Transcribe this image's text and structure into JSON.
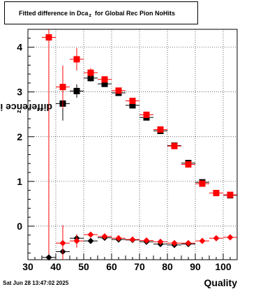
{
  "title": {
    "before": "Fitted difference in Dca",
    "sub": "z",
    "after": "for Global Rec Pion NoHits"
  },
  "axes": {
    "ylabel_main": "difference in Dca",
    "ylabel_sub": "z",
    "xlabel": "Quality"
  },
  "timestamp": "Sat Jun 28 13:47:02 2025",
  "colors": {
    "black": "#000000",
    "red": "#ff0000",
    "grid": "#000000"
  },
  "chart_data": {
    "type": "scatter",
    "xlim": [
      30,
      105
    ],
    "ylim": [
      -0.75,
      4.4
    ],
    "x_ticks": [
      30,
      40,
      50,
      60,
      70,
      80,
      90,
      100
    ],
    "x_tick_labels": [
      "30",
      "40",
      "50",
      "60",
      "70",
      "80",
      "90",
      "100"
    ],
    "y_ticks": [
      0,
      1,
      2,
      3,
      4
    ],
    "y_tick_labels": [
      "0",
      "1",
      "2",
      "3",
      "4"
    ],
    "grid": true,
    "series": [
      {
        "marker": "square",
        "color": "#000000",
        "points": [
          {
            "x": 42.5,
            "y": 2.74,
            "yerr": 0.38
          },
          {
            "x": 47.5,
            "y": 3.02,
            "yerr": 0.15
          },
          {
            "x": 52.5,
            "y": 3.31,
            "yerr": 0.08
          },
          {
            "x": 57.5,
            "y": 3.18,
            "yerr": 0.06
          },
          {
            "x": 62.5,
            "y": 2.98,
            "yerr": 0.05
          },
          {
            "x": 67.5,
            "y": 2.7,
            "yerr": 0.05
          },
          {
            "x": 72.5,
            "y": 2.43,
            "yerr": 0.05
          },
          {
            "x": 77.5,
            "y": 2.13,
            "yerr": 0.05
          },
          {
            "x": 82.5,
            "y": 1.8,
            "yerr": 0.05
          },
          {
            "x": 87.5,
            "y": 1.41,
            "yerr": 0.04
          },
          {
            "x": 92.5,
            "y": 0.98,
            "yerr": 0.04
          },
          {
            "x": 97.5,
            "y": 0.74,
            "yerr": 0.03
          },
          {
            "x": 102.5,
            "y": 0.69,
            "yerr": 0.03
          }
        ]
      },
      {
        "marker": "square",
        "color": "#ff0000",
        "points": [
          {
            "x": 37.5,
            "y": 4.22,
            "yerr": 4.95
          },
          {
            "x": 42.5,
            "y": 3.11,
            "yerr": 0.48
          },
          {
            "x": 47.5,
            "y": 3.73,
            "yerr": 0.25
          },
          {
            "x": 52.5,
            "y": 3.43,
            "yerr": 0.1
          },
          {
            "x": 57.5,
            "y": 3.28,
            "yerr": 0.07
          },
          {
            "x": 62.5,
            "y": 3.03,
            "yerr": 0.06
          },
          {
            "x": 67.5,
            "y": 2.8,
            "yerr": 0.06
          },
          {
            "x": 72.5,
            "y": 2.49,
            "yerr": 0.05
          },
          {
            "x": 77.5,
            "y": 2.16,
            "yerr": 0.05
          },
          {
            "x": 82.5,
            "y": 1.79,
            "yerr": 0.05
          },
          {
            "x": 87.5,
            "y": 1.38,
            "yerr": 0.05
          },
          {
            "x": 92.5,
            "y": 0.95,
            "yerr": 0.04
          },
          {
            "x": 97.5,
            "y": 0.74,
            "yerr": 0.03
          },
          {
            "x": 102.5,
            "y": 0.7,
            "yerr": 0.03
          }
        ]
      },
      {
        "marker": "diamond",
        "color": "#000000",
        "points": [
          {
            "x": 37.5,
            "y": -0.7,
            "yerr": 0.02
          },
          {
            "x": 42.5,
            "y": -0.57,
            "yerr": 0.1
          },
          {
            "x": 47.5,
            "y": -0.27,
            "yerr": 0.07
          },
          {
            "x": 52.5,
            "y": -0.33,
            "yerr": 0.04
          },
          {
            "x": 57.5,
            "y": -0.26,
            "yerr": 0.03
          },
          {
            "x": 62.5,
            "y": -0.3,
            "yerr": 0.03
          },
          {
            "x": 67.5,
            "y": -0.31,
            "yerr": 0.03
          },
          {
            "x": 72.5,
            "y": -0.35,
            "yerr": 0.03
          },
          {
            "x": 77.5,
            "y": -0.4,
            "yerr": 0.03
          },
          {
            "x": 82.5,
            "y": -0.42,
            "yerr": 0.03
          },
          {
            "x": 87.5,
            "y": -0.4,
            "yerr": 0.03
          }
        ]
      },
      {
        "marker": "diamond",
        "color": "#ff0000",
        "points": [
          {
            "x": 42.5,
            "y": -0.38,
            "yerr": 0.4
          },
          {
            "x": 47.5,
            "y": -0.33,
            "yerr": 0.15
          },
          {
            "x": 52.5,
            "y": -0.19,
            "yerr": 0.05
          },
          {
            "x": 57.5,
            "y": -0.23,
            "yerr": 0.04
          },
          {
            "x": 62.5,
            "y": -0.27,
            "yerr": 0.03
          },
          {
            "x": 67.5,
            "y": -0.3,
            "yerr": 0.03
          },
          {
            "x": 72.5,
            "y": -0.32,
            "yerr": 0.03
          },
          {
            "x": 77.5,
            "y": -0.35,
            "yerr": 0.03
          },
          {
            "x": 82.5,
            "y": -0.38,
            "yerr": 0.03
          },
          {
            "x": 87.5,
            "y": -0.38,
            "yerr": 0.03
          },
          {
            "x": 92.5,
            "y": -0.33,
            "yerr": 0.03
          },
          {
            "x": 97.5,
            "y": -0.27,
            "yerr": 0.03
          },
          {
            "x": 102.5,
            "y": -0.25,
            "yerr": 0.03
          }
        ]
      }
    ]
  }
}
